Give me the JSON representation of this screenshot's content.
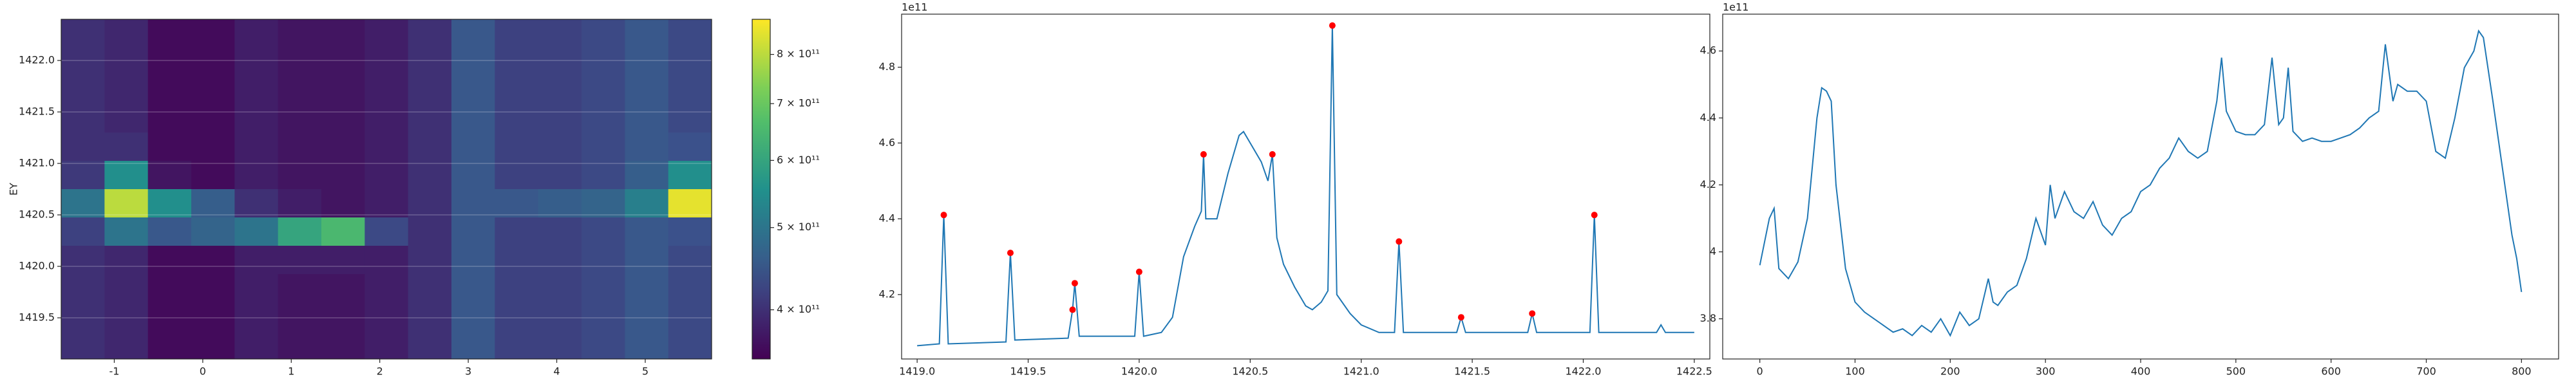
{
  "chart_data": [
    {
      "type": "heatmap",
      "ylabel": "EY",
      "xlim": [
        -1.6,
        5.75
      ],
      "ylim": [
        1419.1,
        1422.4
      ],
      "xticks": [
        -1,
        0,
        1,
        2,
        3,
        4,
        5
      ],
      "yticks": [
        {
          "value": 1419.5,
          "label": "1419.5"
        },
        {
          "value": 1420.0,
          "label": "1420.0"
        },
        {
          "value": 1420.5,
          "label": "1420.5"
        },
        {
          "value": 1421.0,
          "label": "1421.0"
        },
        {
          "value": 1421.5,
          "label": "1421.5"
        },
        {
          "value": 1422.0,
          "label": "1422.0"
        }
      ],
      "grid": true,
      "colorbar_scale": "log",
      "clim": [
        350000000000.0,
        880000000000.0
      ],
      "cticks": [
        {
          "value": 400000000000.0,
          "label": "4 × 10¹¹"
        },
        {
          "value": 500000000000.0,
          "label": "5 × 10¹¹"
        },
        {
          "value": 600000000000.0,
          "label": "6 × 10¹¹"
        },
        {
          "value": 700000000000.0,
          "label": "7 × 10¹¹"
        },
        {
          "value": 800000000000.0,
          "label": "8 × 10¹¹"
        }
      ],
      "z": [
        [
          400000000000.0,
          390000000000.0,
          360000000000.0,
          360000000000.0,
          380000000000.0,
          370000000000.0,
          370000000000.0,
          380000000000.0,
          400000000000.0,
          450000000000.0,
          420000000000.0,
          420000000000.0,
          430000000000.0,
          450000000000.0,
          430000000000.0
        ],
        [
          400000000000.0,
          390000000000.0,
          360000000000.0,
          360000000000.0,
          380000000000.0,
          370000000000.0,
          370000000000.0,
          380000000000.0,
          400000000000.0,
          450000000000.0,
          420000000000.0,
          420000000000.0,
          430000000000.0,
          450000000000.0,
          430000000000.0
        ],
        [
          400000000000.0,
          390000000000.0,
          360000000000.0,
          360000000000.0,
          380000000000.0,
          370000000000.0,
          370000000000.0,
          380000000000.0,
          400000000000.0,
          450000000000.0,
          420000000000.0,
          420000000000.0,
          430000000000.0,
          450000000000.0,
          430000000000.0
        ],
        [
          400000000000.0,
          390000000000.0,
          360000000000.0,
          360000000000.0,
          380000000000.0,
          370000000000.0,
          370000000000.0,
          380000000000.0,
          400000000000.0,
          450000000000.0,
          420000000000.0,
          420000000000.0,
          430000000000.0,
          450000000000.0,
          430000000000.0
        ],
        [
          400000000000.0,
          400000000000.0,
          360000000000.0,
          360000000000.0,
          380000000000.0,
          370000000000.0,
          370000000000.0,
          380000000000.0,
          400000000000.0,
          450000000000.0,
          420000000000.0,
          420000000000.0,
          430000000000.0,
          450000000000.0,
          440000000000.0
        ],
        [
          410000000000.0,
          550000000000.0,
          370000000000.0,
          360000000000.0,
          380000000000.0,
          370000000000.0,
          370000000000.0,
          380000000000.0,
          400000000000.0,
          450000000000.0,
          420000000000.0,
          420000000000.0,
          430000000000.0,
          460000000000.0,
          550000000000.0
        ],
        [
          500000000000.0,
          800000000000.0,
          550000000000.0,
          460000000000.0,
          400000000000.0,
          380000000000.0,
          370000000000.0,
          380000000000.0,
          400000000000.0,
          450000000000.0,
          450000000000.0,
          460000000000.0,
          470000000000.0,
          520000000000.0,
          850000000000.0
        ],
        [
          420000000000.0,
          500000000000.0,
          450000000000.0,
          470000000000.0,
          500000000000.0,
          600000000000.0,
          650000000000.0,
          430000000000.0,
          400000000000.0,
          450000000000.0,
          420000000000.0,
          420000000000.0,
          430000000000.0,
          450000000000.0,
          440000000000.0
        ],
        [
          400000000000.0,
          390000000000.0,
          360000000000.0,
          360000000000.0,
          380000000000.0,
          380000000000.0,
          380000000000.0,
          380000000000.0,
          400000000000.0,
          450000000000.0,
          420000000000.0,
          420000000000.0,
          430000000000.0,
          450000000000.0,
          430000000000.0
        ],
        [
          400000000000.0,
          390000000000.0,
          360000000000.0,
          360000000000.0,
          380000000000.0,
          370000000000.0,
          370000000000.0,
          380000000000.0,
          400000000000.0,
          450000000000.0,
          420000000000.0,
          420000000000.0,
          430000000000.0,
          450000000000.0,
          430000000000.0
        ],
        [
          400000000000.0,
          390000000000.0,
          360000000000.0,
          360000000000.0,
          380000000000.0,
          370000000000.0,
          370000000000.0,
          380000000000.0,
          400000000000.0,
          450000000000.0,
          420000000000.0,
          420000000000.0,
          430000000000.0,
          450000000000.0,
          430000000000.0
        ],
        [
          400000000000.0,
          390000000000.0,
          360000000000.0,
          360000000000.0,
          380000000000.0,
          370000000000.0,
          370000000000.0,
          380000000000.0,
          400000000000.0,
          450000000000.0,
          420000000000.0,
          420000000000.0,
          430000000000.0,
          450000000000.0,
          430000000000.0
        ]
      ]
    },
    {
      "type": "line",
      "offset_label": "1e11",
      "xlim": [
        1418.93,
        1422.57
      ],
      "ylim": [
        4.03,
        4.94
      ],
      "xticks": [
        {
          "value": 1419.0,
          "label": "1419.0"
        },
        {
          "value": 1419.5,
          "label": "1419.5"
        },
        {
          "value": 1420.0,
          "label": "1420.0"
        },
        {
          "value": 1420.5,
          "label": "1420.5"
        },
        {
          "value": 1421.0,
          "label": "1421.0"
        },
        {
          "value": 1421.5,
          "label": "1421.5"
        },
        {
          "value": 1422.0,
          "label": "1422.0"
        },
        {
          "value": 1422.5,
          "label": "1422.5"
        }
      ],
      "yticks": [
        4.2,
        4.4,
        4.6,
        4.8
      ],
      "series": [
        {
          "type": "line",
          "color": "#1f77b4",
          "x": [
            1419.0,
            1419.1,
            1419.12,
            1419.14,
            1419.4,
            1419.42,
            1419.44,
            1419.68,
            1419.7,
            1419.71,
            1419.73,
            1419.98,
            1420.0,
            1420.02,
            1420.1,
            1420.15,
            1420.2,
            1420.25,
            1420.28,
            1420.29,
            1420.3,
            1420.35,
            1420.4,
            1420.45,
            1420.47,
            1420.5,
            1420.55,
            1420.58,
            1420.6,
            1420.62,
            1420.65,
            1420.7,
            1420.75,
            1420.78,
            1420.82,
            1420.85,
            1420.87,
            1420.89,
            1420.95,
            1421.0,
            1421.08,
            1421.15,
            1421.17,
            1421.19,
            1421.43,
            1421.45,
            1421.47,
            1421.75,
            1421.77,
            1421.79,
            1422.03,
            1422.05,
            1422.07,
            1422.33,
            1422.35,
            1422.37,
            1422.5
          ],
          "values": [
            4.065,
            4.07,
            4.41,
            4.07,
            4.075,
            4.31,
            4.08,
            4.085,
            4.16,
            4.23,
            4.09,
            4.09,
            4.26,
            4.09,
            4.1,
            4.14,
            4.3,
            4.38,
            4.42,
            4.57,
            4.4,
            4.4,
            4.52,
            4.62,
            4.63,
            4.6,
            4.55,
            4.5,
            4.57,
            4.35,
            4.28,
            4.22,
            4.17,
            4.16,
            4.18,
            4.21,
            4.91,
            4.2,
            4.15,
            4.12,
            4.1,
            4.1,
            4.34,
            4.1,
            4.1,
            4.14,
            4.1,
            4.1,
            4.15,
            4.1,
            4.1,
            4.41,
            4.1,
            4.1,
            4.12,
            4.1,
            4.1
          ]
        },
        {
          "type": "scatter",
          "color": "#ff0000",
          "x": [
            1419.12,
            1419.42,
            1419.7,
            1419.71,
            1420.0,
            1420.29,
            1420.6,
            1420.87,
            1421.17,
            1421.45,
            1421.77,
            1422.05
          ],
          "values": [
            4.41,
            4.31,
            4.16,
            4.23,
            4.26,
            4.57,
            4.57,
            4.91,
            4.34,
            4.14,
            4.15,
            4.41
          ]
        }
      ]
    },
    {
      "type": "line",
      "offset_label": "1e11",
      "xlim": [
        -39,
        839
      ],
      "ylim": [
        3.68,
        4.71
      ],
      "xticks": [
        0,
        100,
        200,
        300,
        400,
        500,
        600,
        700,
        800
      ],
      "yticks": [
        3.8,
        4.0,
        4.2,
        4.4,
        4.6
      ],
      "series": [
        {
          "type": "line",
          "color": "#1f77b4",
          "x": [
            0,
            10,
            15,
            20,
            30,
            40,
            50,
            60,
            65,
            70,
            75,
            80,
            90,
            100,
            110,
            120,
            130,
            140,
            150,
            160,
            170,
            180,
            190,
            200,
            210,
            220,
            230,
            240,
            245,
            250,
            260,
            270,
            280,
            290,
            300,
            305,
            310,
            320,
            330,
            340,
            350,
            360,
            370,
            380,
            390,
            400,
            410,
            420,
            430,
            440,
            450,
            460,
            470,
            480,
            485,
            490,
            500,
            510,
            520,
            530,
            538,
            545,
            550,
            555,
            560,
            570,
            580,
            590,
            600,
            610,
            620,
            630,
            640,
            650,
            657,
            665,
            670,
            680,
            690,
            700,
            710,
            720,
            730,
            740,
            750,
            755,
            760,
            770,
            780,
            790,
            795,
            800
          ],
          "values": [
            3.96,
            4.1,
            4.13,
            3.95,
            3.92,
            3.97,
            4.1,
            4.4,
            4.49,
            4.48,
            4.45,
            4.2,
            3.95,
            3.85,
            3.82,
            3.8,
            3.78,
            3.76,
            3.77,
            3.75,
            3.78,
            3.76,
            3.8,
            3.75,
            3.82,
            3.78,
            3.8,
            3.92,
            3.85,
            3.84,
            3.88,
            3.9,
            3.98,
            4.1,
            4.02,
            4.2,
            4.1,
            4.18,
            4.12,
            4.1,
            4.15,
            4.08,
            4.05,
            4.1,
            4.12,
            4.18,
            4.2,
            4.25,
            4.28,
            4.34,
            4.3,
            4.28,
            4.3,
            4.45,
            4.58,
            4.42,
            4.36,
            4.35,
            4.35,
            4.38,
            4.58,
            4.38,
            4.4,
            4.55,
            4.36,
            4.33,
            4.34,
            4.33,
            4.33,
            4.34,
            4.35,
            4.37,
            4.4,
            4.42,
            4.62,
            4.45,
            4.5,
            4.48,
            4.48,
            4.45,
            4.3,
            4.28,
            4.4,
            4.55,
            4.6,
            4.66,
            4.64,
            4.45,
            4.25,
            4.05,
            3.98,
            3.88
          ]
        }
      ]
    }
  ]
}
